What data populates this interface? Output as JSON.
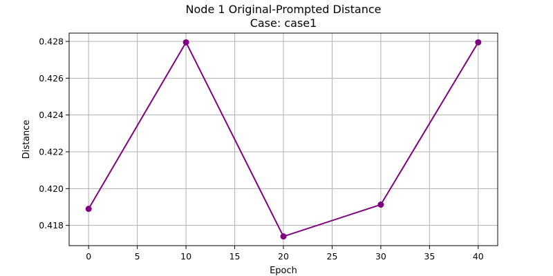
{
  "chart_data": {
    "type": "line",
    "title": "Node 1 Original-Prompted Distance",
    "subtitle": "Case: case1",
    "xlabel": "Epoch",
    "ylabel": "Distance",
    "x": [
      0,
      10,
      20,
      30,
      40
    ],
    "series": [
      {
        "values": [
          0.4189,
          0.42795,
          0.4174,
          0.41913,
          0.42795
        ],
        "color": "#800080",
        "marker": "circle"
      }
    ],
    "xlim": [
      -2,
      42
    ],
    "ylim": [
      0.4169,
      0.42845
    ],
    "xticks": [
      0,
      5,
      10,
      15,
      20,
      25,
      30,
      35,
      40
    ],
    "yticks": [
      0.418,
      0.42,
      0.422,
      0.424,
      0.426,
      0.428
    ],
    "ytick_labels": [
      "0.418",
      "0.420",
      "0.422",
      "0.424",
      "0.426",
      "0.428"
    ],
    "grid": true,
    "grid_color": "#b0b0b0"
  }
}
